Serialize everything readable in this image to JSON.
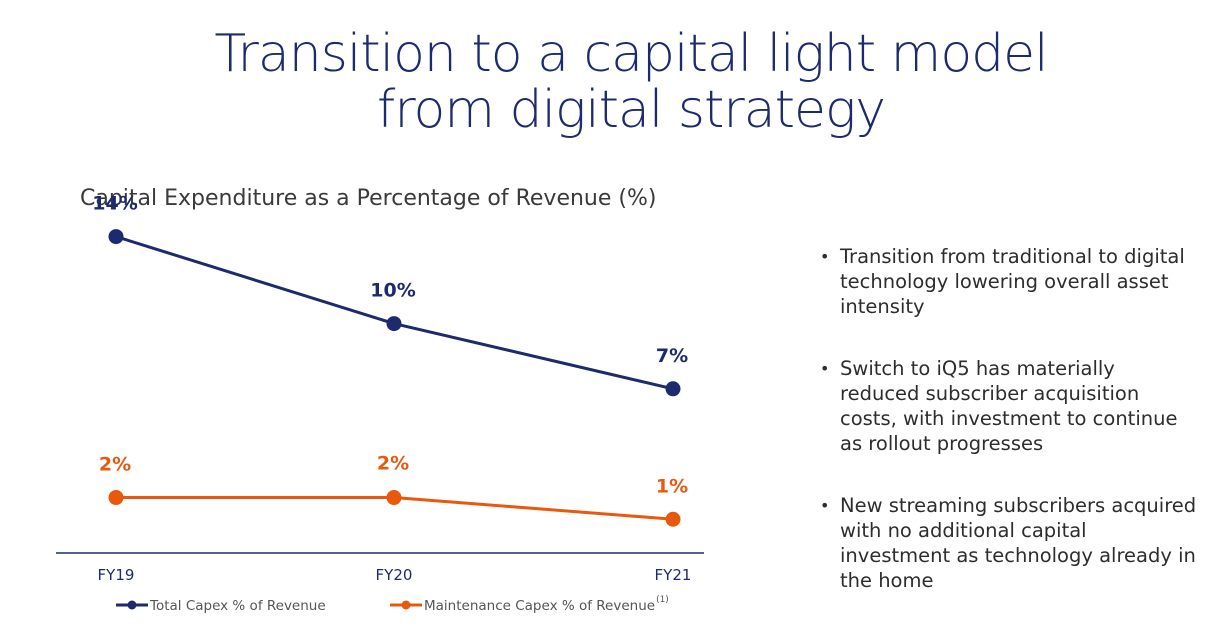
{
  "title_line1": "Transition to a capital light model",
  "title_line2": "from digital strategy",
  "chart_data": {
    "type": "line",
    "title": "Capital Expenditure as a Percentage of Revenue (%)",
    "categories": [
      "FY19",
      "FY20",
      "FY21"
    ],
    "ylim": [
      0,
      15
    ],
    "series": [
      {
        "name": "Total Capex % of Revenue",
        "values": [
          14,
          10,
          7
        ],
        "labels": [
          "14%",
          "10%",
          "7%"
        ],
        "color": "#1d2a6e"
      },
      {
        "name": "Maintenance Capex % of Revenue",
        "values": [
          2,
          2,
          1
        ],
        "labels": [
          "2%",
          "2%",
          "1%"
        ],
        "color": "#e8580d"
      }
    ],
    "legend_footnote": "(1)",
    "legend_position": "bottom",
    "grid": false
  },
  "bullets": [
    "Transition from traditional to digital technology lowering overall asset intensity",
    "Switch to iQ5 has materially reduced subscriber acquisition costs, with investment to continue as rollout progresses",
    "New streaming subscribers acquired with no additional capital investment as technology already in the home"
  ]
}
